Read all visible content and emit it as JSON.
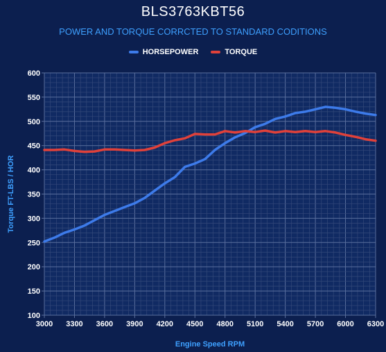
{
  "chart_data": {
    "type": "line",
    "title": "BLS3763KBT56",
    "subtitle": "POWER AND TORQUE CORRCTED TO STANDARD CODITIONS",
    "xlabel": "Engine Speed RPM",
    "ylabel": "Torque FT-LBS / HOR",
    "xlim": [
      3000,
      6300
    ],
    "ylim": [
      100,
      600
    ],
    "x_ticks": [
      "3000",
      "3300",
      "3600",
      "3900",
      "4200",
      "4500",
      "4800",
      "5100",
      "5400",
      "5700",
      "6000",
      "6300"
    ],
    "y_ticks": [
      "600",
      "550",
      "500",
      "450",
      "400",
      "350",
      "300",
      "250",
      "200",
      "150",
      "100"
    ],
    "legend_position": "top",
    "grid": true,
    "x": [
      3000,
      3100,
      3200,
      3300,
      3400,
      3500,
      3600,
      3700,
      3800,
      3900,
      4000,
      4100,
      4200,
      4300,
      4400,
      4500,
      4600,
      4700,
      4800,
      4900,
      5000,
      5100,
      5200,
      5300,
      5400,
      5500,
      5600,
      5700,
      5800,
      5900,
      6000,
      6100,
      6200,
      6300
    ],
    "series": [
      {
        "name": "HORSEPOWER",
        "color": "#3d7bea",
        "values": [
          252,
          260,
          270,
          277,
          285,
          296,
          307,
          315,
          323,
          331,
          342,
          357,
          372,
          385,
          406,
          413,
          422,
          441,
          455,
          467,
          476,
          488,
          495,
          505,
          510,
          517,
          520,
          525,
          530,
          528,
          525,
          520,
          516,
          513
        ]
      },
      {
        "name": "TORQUE",
        "color": "#e0413a",
        "values": [
          441,
          441,
          442,
          439,
          437,
          438,
          442,
          442,
          441,
          440,
          441,
          446,
          455,
          461,
          465,
          474,
          473,
          473,
          480,
          477,
          480,
          478,
          481,
          477,
          480,
          478,
          480,
          478,
          480,
          477,
          472,
          468,
          463,
          460
        ]
      }
    ]
  }
}
